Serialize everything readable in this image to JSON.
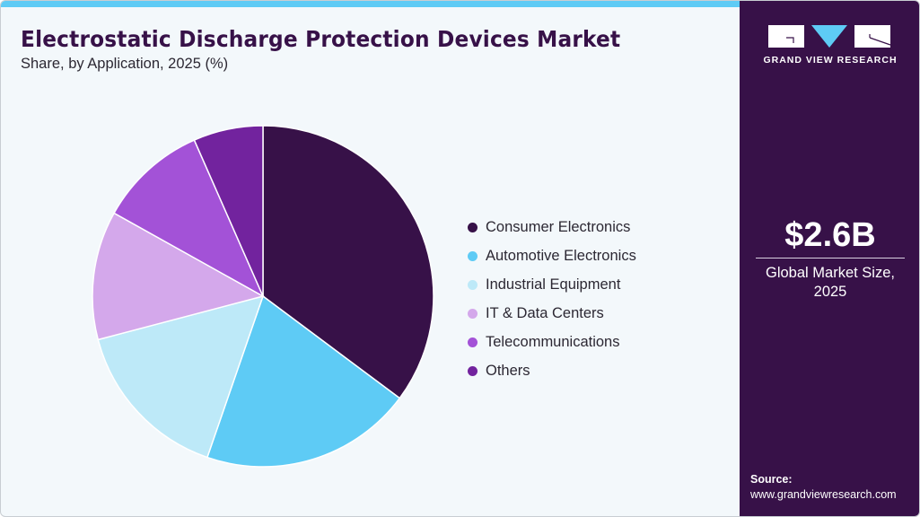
{
  "header": {
    "title": "Electrostatic Discharge Protection Devices Market",
    "subtitle": "Share, by Application, 2025 (%)"
  },
  "sidebar": {
    "logo_text": "GRAND VIEW RESEARCH",
    "market_value": "$2.6B",
    "market_label_line1": "Global Market Size,",
    "market_label_line2": "2025",
    "source_label": "Source:",
    "source_url": "www.grandviewresearch.com"
  },
  "colors": {
    "brand_dark": "#371148",
    "accent_blue": "#5ecbf5",
    "background": "#f3f8fb"
  },
  "legend": [
    {
      "label": "Consumer Electronics",
      "color": "#371148"
    },
    {
      "label": "Automotive Electronics",
      "color": "#5ecbf5"
    },
    {
      "label": "Industrial Equipment",
      "color": "#bde9f8"
    },
    {
      "label": "IT & Data Centers",
      "color": "#d4a8eb"
    },
    {
      "label": "Telecommunications",
      "color": "#a352d7"
    },
    {
      "label": "Others",
      "color": "#72239e"
    }
  ],
  "chart_data": {
    "type": "pie",
    "title": "Electrostatic Discharge Protection Devices Market",
    "subtitle": "Share, by Application, 2025 (%)",
    "categories": [
      "Consumer Electronics",
      "Automotive Electronics",
      "Industrial Equipment",
      "IT & Data Centers",
      "Telecommunications",
      "Others"
    ],
    "values": [
      35.2,
      20.1,
      15.6,
      12.2,
      10.3,
      6.6
    ],
    "colors": [
      "#371148",
      "#5ecbf5",
      "#bde9f8",
      "#d4a8eb",
      "#a352d7",
      "#72239e"
    ],
    "start_angle": "12 o'clock",
    "direction": "clockwise",
    "legend_position": "right",
    "data_labels": false
  }
}
